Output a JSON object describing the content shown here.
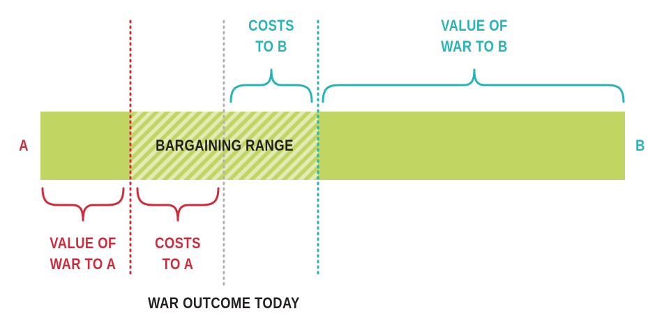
{
  "end_labels": {
    "a": "A",
    "b": "B"
  },
  "bar_label": "BARGAINING RANGE",
  "brackets": {
    "value_of_war_to_a": [
      "VALUE OF",
      "WAR TO A"
    ],
    "costs_to_a": [
      "COSTS",
      "TO A"
    ],
    "costs_to_b": [
      "COSTS",
      "TO B"
    ],
    "value_of_war_to_b": [
      "VALUE OF",
      "WAR TO B"
    ]
  },
  "marker_label": "WAR OUTCOME TODAY",
  "colors": {
    "side_a": "#d12b3b",
    "side_b": "#27b4b8",
    "bar": "#c1d562",
    "hatch": "#e2ebb3",
    "outcome_line": "#b3b3b3",
    "text": "#231f20"
  }
}
